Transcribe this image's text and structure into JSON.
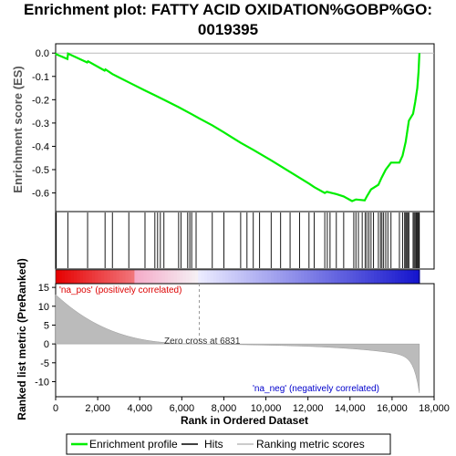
{
  "chart_data": {
    "type": "line",
    "title_line1": "Enrichment plot: FATTY ACID OXIDATION%GOBP%GO:",
    "title_line2": "0019395",
    "ylabel_top": "Enrichment score (ES)",
    "ylabel_bottom": "Ranked list metric (PreRanked)",
    "xlabel": "Rank in Ordered Dataset",
    "x_ticks": [
      "0",
      "2,000",
      "4,000",
      "6,000",
      "8,000",
      "10,000",
      "12,000",
      "14,000",
      "16,000",
      "18,000"
    ],
    "x_tick_values": [
      0,
      2000,
      4000,
      6000,
      8000,
      10000,
      12000,
      14000,
      16000,
      18000
    ],
    "xlim": [
      0,
      18000
    ],
    "es_ylim": [
      -0.68,
      0.04
    ],
    "es_y_ticks": [
      "0.0",
      "-0.1",
      "-0.2",
      "-0.3",
      "-0.4",
      "-0.5",
      "-0.6"
    ],
    "es_y_tick_values": [
      0.0,
      -0.1,
      -0.2,
      -0.3,
      -0.4,
      -0.5,
      -0.6
    ],
    "metric_ylim": [
      -14,
      16
    ],
    "metric_y_ticks": [
      "15",
      "10",
      "5",
      "0",
      "-5",
      "-10"
    ],
    "metric_y_tick_values": [
      15,
      10,
      5,
      0,
      -5,
      -10
    ],
    "n_genes": 17300,
    "zero_cross": 6831,
    "zero_cross_label": "Zero cross at 6831",
    "pos_label": "'na_pos' (positively correlated)",
    "neg_label": "'na_neg' (negatively correlated)",
    "legend": [
      "Enrichment profile",
      "Hits",
      "Ranking metric scores"
    ],
    "colors": {
      "es_line": "#00ee00",
      "hits": "#000000",
      "metric_fill": "#bbbbbb",
      "pos_text": "#dd0000",
      "neg_text": "#0000cc"
    },
    "hits": [
      30,
      580,
      1520,
      2350,
      2700,
      3480,
      4250,
      4720,
      4850,
      4980,
      5150,
      5850,
      5960,
      6280,
      6380,
      6470,
      6680,
      7450,
      8000,
      8800,
      9100,
      9400,
      9700,
      10250,
      10700,
      11150,
      11600,
      12050,
      12300,
      12800,
      12920,
      13050,
      13350,
      13700,
      14180,
      14280,
      14400,
      14580,
      14720,
      14800,
      14900,
      15000,
      15120,
      15350,
      15450,
      15520,
      15600,
      15700,
      15800,
      15950,
      16350,
      16500,
      16600,
      16650,
      16700,
      16750,
      16800,
      17000,
      17050,
      17100,
      17150,
      17200,
      17250,
      17280,
      17295
    ],
    "es_curve": [
      [
        0,
        0.0
      ],
      [
        30,
        -0.005
      ],
      [
        560,
        -0.025
      ],
      [
        590,
        -0.002
      ],
      [
        1500,
        -0.04
      ],
      [
        1540,
        -0.035
      ],
      [
        2330,
        -0.075
      ],
      [
        2370,
        -0.07
      ],
      [
        2700,
        -0.09
      ],
      [
        3470,
        -0.125
      ],
      [
        4240,
        -0.16
      ],
      [
        4700,
        -0.18
      ],
      [
        5150,
        -0.2
      ],
      [
        5850,
        -0.232
      ],
      [
        6470,
        -0.262
      ],
      [
        6830,
        -0.28
      ],
      [
        7450,
        -0.31
      ],
      [
        8000,
        -0.34
      ],
      [
        8800,
        -0.385
      ],
      [
        9400,
        -0.415
      ],
      [
        10250,
        -0.46
      ],
      [
        10700,
        -0.485
      ],
      [
        11150,
        -0.51
      ],
      [
        11600,
        -0.535
      ],
      [
        12050,
        -0.56
      ],
      [
        12300,
        -0.575
      ],
      [
        12800,
        -0.6
      ],
      [
        12900,
        -0.595
      ],
      [
        13350,
        -0.605
      ],
      [
        13700,
        -0.615
      ],
      [
        14100,
        -0.635
      ],
      [
        14280,
        -0.628
      ],
      [
        14700,
        -0.632
      ],
      [
        14800,
        -0.615
      ],
      [
        15000,
        -0.585
      ],
      [
        15350,
        -0.565
      ],
      [
        15500,
        -0.535
      ],
      [
        15700,
        -0.5
      ],
      [
        15950,
        -0.47
      ],
      [
        16350,
        -0.47
      ],
      [
        16500,
        -0.44
      ],
      [
        16650,
        -0.38
      ],
      [
        16800,
        -0.29
      ],
      [
        17000,
        -0.26
      ],
      [
        17100,
        -0.21
      ],
      [
        17200,
        -0.15
      ],
      [
        17260,
        -0.08
      ],
      [
        17300,
        0.0
      ]
    ]
  }
}
